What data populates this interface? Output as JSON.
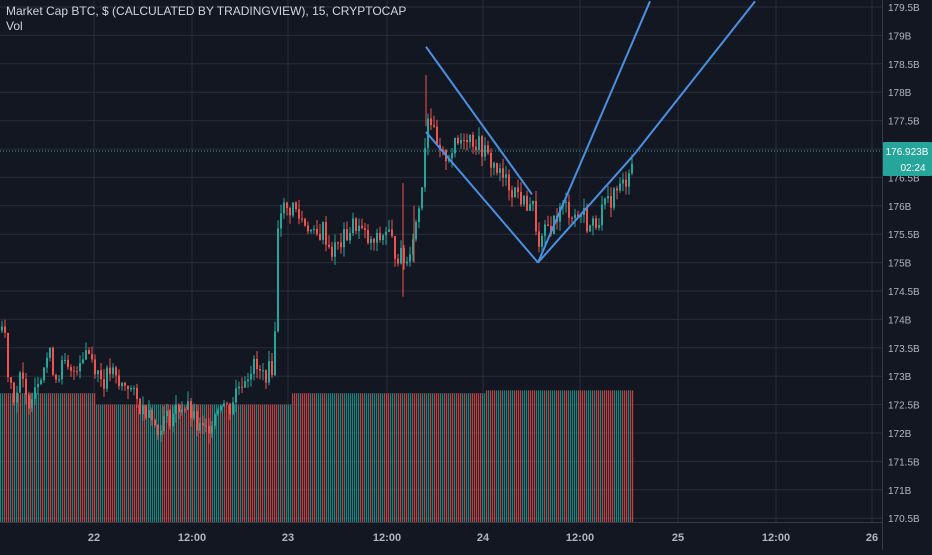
{
  "header": {
    "title": "Market Cap BTC, $ (CALCULATED BY TRADINGVIEW), 15, CRYPTOCAP",
    "volume_label": "Vol"
  },
  "colors": {
    "background": "#131722",
    "grid": "#2a2e39",
    "up": "#26a69a",
    "down": "#ef5350",
    "axis_text": "#b2b5be",
    "drawing": "#4a90e2",
    "price_line": "#26a69a"
  },
  "chart_data": {
    "type": "candlestick",
    "symbol": "CRYPTOCAP:BTC",
    "interval": "15",
    "y_axis": {
      "unit": "B",
      "range": [
        170.5,
        179.5
      ],
      "tick_labels": [
        "179.5B",
        "179B",
        "178.5B",
        "178B",
        "177.5B",
        "177B",
        "176.5B",
        "176B",
        "175.5B",
        "175B",
        "174.5B",
        "174B",
        "173.5B",
        "173B",
        "172.5B",
        "172B",
        "171.5B",
        "171B",
        "170.5B"
      ]
    },
    "x_axis": {
      "tick_labels": [
        "22",
        "12:00",
        "23",
        "12:00",
        "24",
        "12:00",
        "25",
        "12:00",
        "26"
      ]
    },
    "last_price_label": "176.923B",
    "countdown_label": "02:24",
    "candle_path": [
      [
        0,
        173.8
      ],
      [
        3,
        174.0
      ],
      [
        6,
        173.2
      ],
      [
        10,
        172.9
      ],
      [
        14,
        172.6
      ],
      [
        20,
        173.0
      ],
      [
        26,
        172.5
      ],
      [
        32,
        172.8
      ],
      [
        40,
        173.1
      ],
      [
        48,
        173.4
      ],
      [
        55,
        173.0
      ],
      [
        62,
        173.2
      ],
      [
        70,
        173.0
      ],
      [
        78,
        173.3
      ],
      [
        86,
        173.5
      ],
      [
        94,
        173.2
      ],
      [
        102,
        172.9
      ],
      [
        110,
        173.1
      ],
      [
        118,
        172.8
      ],
      [
        126,
        172.9
      ],
      [
        134,
        172.6
      ],
      [
        142,
        172.4
      ],
      [
        150,
        172.5
      ],
      [
        156,
        171.9
      ],
      [
        160,
        172.2
      ],
      [
        170,
        172.3
      ],
      [
        180,
        172.5
      ],
      [
        188,
        172.4
      ],
      [
        196,
        172.1
      ],
      [
        204,
        172.0
      ],
      [
        212,
        172.3
      ],
      [
        220,
        172.6
      ],
      [
        228,
        172.4
      ],
      [
        236,
        172.8
      ],
      [
        244,
        173.0
      ],
      [
        252,
        173.2
      ],
      [
        260,
        173.0
      ],
      [
        268,
        173.1
      ],
      [
        272,
        173.2
      ],
      [
        275,
        174.0
      ],
      [
        277,
        175.7
      ],
      [
        280,
        176.0
      ],
      [
        286,
        175.9
      ],
      [
        292,
        176.0
      ],
      [
        298,
        175.8
      ],
      [
        306,
        175.7
      ],
      [
        314,
        175.4
      ],
      [
        322,
        175.6
      ],
      [
        330,
        175.2
      ],
      [
        338,
        175.3
      ],
      [
        346,
        175.5
      ],
      [
        354,
        175.7
      ],
      [
        362,
        175.5
      ],
      [
        370,
        175.3
      ],
      [
        378,
        175.4
      ],
      [
        386,
        175.6
      ],
      [
        394,
        175.2
      ],
      [
        400,
        175.1
      ],
      [
        406,
        175.0
      ],
      [
        410,
        175.4
      ],
      [
        414,
        175.6
      ],
      [
        418,
        176.0
      ],
      [
        422,
        176.6
      ],
      [
        426,
        177.6
      ],
      [
        428,
        177.7
      ],
      [
        432,
        177.3
      ],
      [
        436,
        177.0
      ],
      [
        440,
        176.8
      ],
      [
        446,
        176.9
      ],
      [
        452,
        177.0
      ],
      [
        458,
        177.1
      ],
      [
        464,
        177.3
      ],
      [
        470,
        177.2
      ],
      [
        476,
        177.1
      ],
      [
        482,
        177.0
      ],
      [
        488,
        176.8
      ],
      [
        494,
        176.7
      ],
      [
        500,
        176.5
      ],
      [
        506,
        176.4
      ],
      [
        512,
        176.3
      ],
      [
        518,
        176.2
      ],
      [
        524,
        176.0
      ],
      [
        530,
        176.1
      ],
      [
        534,
        175.8
      ],
      [
        538,
        175.2
      ],
      [
        542,
        175.4
      ],
      [
        546,
        175.6
      ],
      [
        552,
        175.7
      ],
      [
        558,
        175.9
      ],
      [
        564,
        176.0
      ],
      [
        570,
        175.9
      ],
      [
        576,
        175.8
      ],
      [
        582,
        175.9
      ],
      [
        588,
        175.6
      ],
      [
        594,
        175.7
      ],
      [
        600,
        175.9
      ],
      [
        606,
        176.0
      ],
      [
        612,
        176.2
      ],
      [
        618,
        176.3
      ],
      [
        624,
        176.4
      ],
      [
        628,
        176.7
      ],
      [
        633,
        176.9
      ]
    ],
    "volume_profile": [
      [
        0,
        172.7
      ],
      [
        90,
        172.7
      ],
      [
        95,
        172.5
      ],
      [
        286,
        172.5
      ],
      [
        290,
        172.7
      ],
      [
        480,
        172.7
      ],
      [
        485,
        172.75
      ],
      [
        633,
        172.75
      ]
    ],
    "drawings": [
      {
        "type": "trendline",
        "from": [
          426,
          178.8
        ],
        "to": [
          532,
          176.2
        ]
      },
      {
        "type": "trendline",
        "from": [
          426,
          177.3
        ],
        "to": [
          538,
          175.0
        ]
      },
      {
        "type": "trendline",
        "from": [
          538,
          175.0
        ],
        "to": [
          650,
          179.6
        ]
      },
      {
        "type": "trendline",
        "from": [
          538,
          175.0
        ],
        "to": [
          634,
          176.9
        ]
      },
      {
        "type": "trendline",
        "from": [
          634,
          176.9
        ],
        "to": [
          755,
          179.6
        ]
      }
    ]
  }
}
